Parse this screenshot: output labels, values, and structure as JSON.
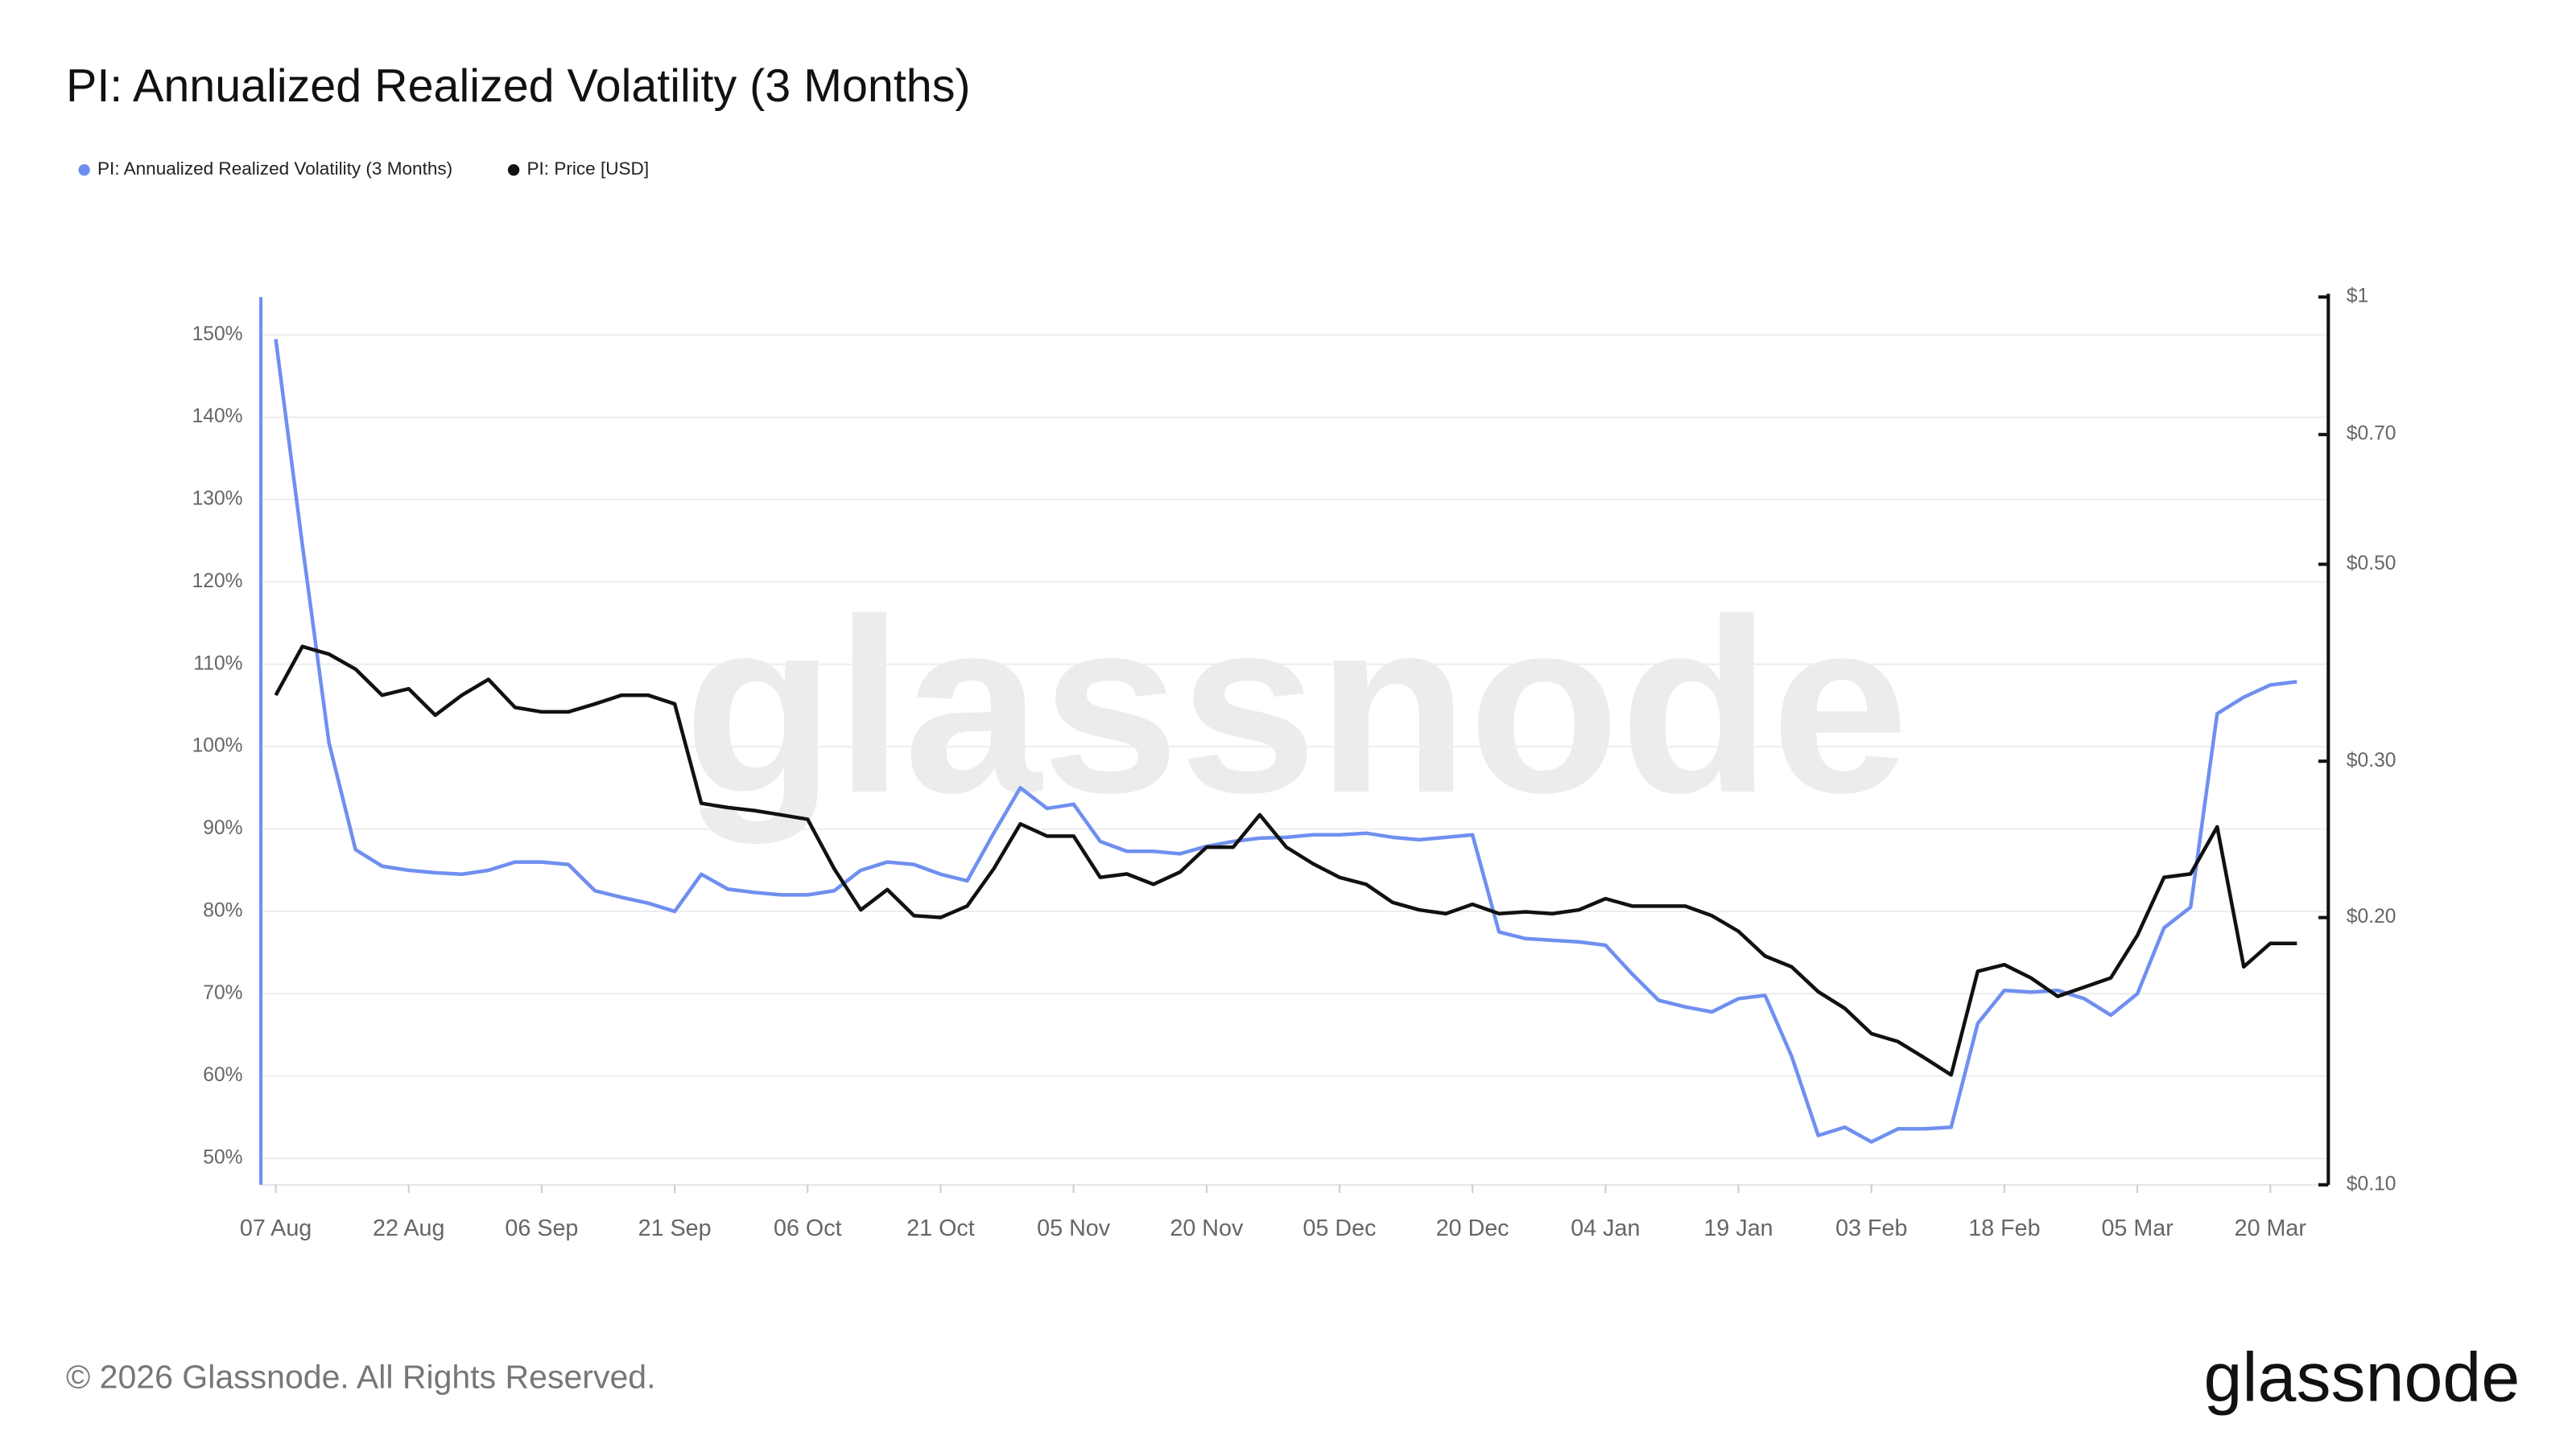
{
  "chart_data": {
    "type": "line",
    "title": "PI: Annualized Realized Volatility (3 Months)",
    "watermark": "glassnode",
    "footer": "© 2026 Glassnode. All Rights Reserved.",
    "logo": "glassnode",
    "categories": [
      "07 Aug",
      null,
      null,
      null,
      null,
      "22 Aug",
      null,
      null,
      null,
      null,
      "06 Sep",
      null,
      null,
      null,
      null,
      "21 Sep",
      null,
      null,
      null,
      null,
      "06 Oct",
      null,
      null,
      null,
      null,
      "21 Oct",
      null,
      null,
      null,
      null,
      "05 Nov",
      null,
      null,
      null,
      null,
      "20 Nov",
      null,
      null,
      null,
      null,
      "05 Dec",
      null,
      null,
      null,
      null,
      "20 Dec",
      null,
      null,
      null,
      null,
      "04 Jan",
      null,
      null,
      null,
      null,
      "19 Jan",
      null,
      null,
      null,
      null,
      "03 Feb",
      null,
      null,
      null,
      null,
      "18 Feb",
      null,
      null,
      null,
      null,
      "05 Mar",
      null,
      null,
      null,
      null,
      "20 Mar",
      null
    ],
    "series": [
      {
        "name": "PI: Annualized Realized Volatility (3 Months)",
        "color": "#6f8ff0",
        "axis": "y",
        "values": [
          149.5,
          124.5,
          100.5,
          87.5,
          85.5,
          85,
          84.7,
          84.5,
          85,
          86,
          86,
          85.7,
          82.5,
          81.7,
          81,
          80,
          84.5,
          82.7,
          82.3,
          82,
          82,
          82.5,
          85,
          86,
          85.7,
          84.5,
          83.7,
          89.5,
          95,
          92.5,
          93,
          88.5,
          87.3,
          87.3,
          87,
          87.9,
          88.5,
          88.9,
          89,
          89.3,
          89.3,
          89.5,
          89,
          88.7,
          89,
          89.3,
          77.5,
          76.7,
          76.5,
          76.3,
          75.9,
          72.4,
          69.2,
          68.4,
          67.8,
          69.4,
          69.8,
          62.4,
          52.8,
          53.8,
          52,
          53.6,
          53.6,
          53.8,
          66.4,
          70.4,
          70.2,
          70.4,
          69.4,
          67.4,
          70,
          78,
          80.5,
          104,
          106,
          107.5,
          107.9
        ]
      },
      {
        "name": "PI: Price [USD]",
        "color": "#111111",
        "axis": "y2",
        "values": [
          0.356,
          0.404,
          0.396,
          0.381,
          0.356,
          0.362,
          0.338,
          0.356,
          0.371,
          0.345,
          0.341,
          0.341,
          0.348,
          0.356,
          0.356,
          0.348,
          0.269,
          0.266,
          0.264,
          0.261,
          0.258,
          0.227,
          0.204,
          0.215,
          0.201,
          0.2,
          0.206,
          0.227,
          0.255,
          0.247,
          0.247,
          0.222,
          0.224,
          0.218,
          0.225,
          0.24,
          0.24,
          0.261,
          0.24,
          0.23,
          0.222,
          0.218,
          0.208,
          0.204,
          0.202,
          0.207,
          0.202,
          0.203,
          0.202,
          0.204,
          0.21,
          0.206,
          0.206,
          0.206,
          0.201,
          0.193,
          0.181,
          0.176,
          0.165,
          0.158,
          0.148,
          0.145,
          0.139,
          0.133,
          0.174,
          0.177,
          0.171,
          0.163,
          0.167,
          0.171,
          0.191,
          0.222,
          0.224,
          0.253,
          0.176,
          0.187,
          0.187
        ]
      }
    ],
    "ylim": [
      46.8,
      154.6
    ],
    "yticks": [
      {
        "value": 50,
        "label": "50%"
      },
      {
        "value": 60,
        "label": "60%"
      },
      {
        "value": 70,
        "label": "70%"
      },
      {
        "value": 80,
        "label": "80%"
      },
      {
        "value": 90,
        "label": "90%"
      },
      {
        "value": 100,
        "label": "100%"
      },
      {
        "value": 110,
        "label": "110%"
      },
      {
        "value": 120,
        "label": "120%"
      },
      {
        "value": 130,
        "label": "130%"
      },
      {
        "value": 140,
        "label": "140%"
      },
      {
        "value": 150,
        "label": "150%"
      }
    ],
    "y2lim": [
      0.1,
      1
    ],
    "y2log": true,
    "y2ticks": [
      {
        "value": 0.1,
        "label": "$0.10"
      },
      {
        "value": 0.2,
        "label": "$0.20"
      },
      {
        "value": 0.3,
        "label": "$0.30"
      },
      {
        "value": 0.5,
        "label": "$0.50"
      },
      {
        "value": 0.7,
        "label": "$0.70"
      },
      {
        "value": 1,
        "label": "$1"
      }
    ],
    "grid": true,
    "legend": "top-left"
  }
}
